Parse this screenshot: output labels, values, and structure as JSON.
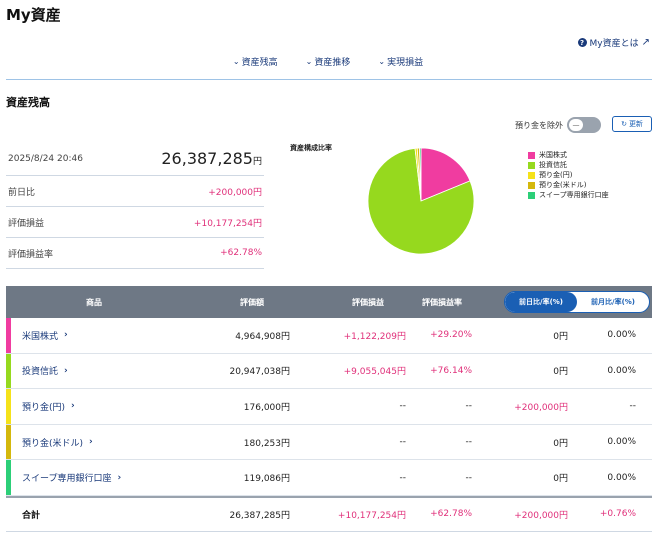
{
  "page_title": "My資産",
  "help_link": "My資産とは",
  "anchor_nav": [
    "資産残高",
    "資産推移",
    "実現損益"
  ],
  "section_title": "資産残高",
  "exclude_label": "預り金を除外",
  "toggle_state": "—",
  "refresh_label": "更新",
  "summary": {
    "datetime": "2025/8/24 20:46",
    "total": "26,387,285",
    "unit": "円",
    "rows": [
      {
        "label": "前日比",
        "value": "+200,000円"
      },
      {
        "label": "評価損益",
        "value": "+10,177,254円"
      },
      {
        "label": "評価損益率",
        "value": "+62.78%"
      }
    ]
  },
  "pie": {
    "title": "資産構成比率",
    "legend": [
      "米国株式",
      "投資信託",
      "預り金(円)",
      "預り金(米ドル)",
      "スイープ専用銀行口座"
    ]
  },
  "chart_data": {
    "type": "pie",
    "title": "資産構成比率",
    "categories": [
      "米国株式",
      "投資信託",
      "預り金(円)",
      "預り金(米ドル)",
      "スイープ専用銀行口座"
    ],
    "values": [
      4964908,
      20947038,
      176000,
      180253,
      119086
    ],
    "colors": [
      "#f03ca0",
      "#96d91e",
      "#f5e21a",
      "#d4b80c",
      "#2ccf78"
    ],
    "legend_position": "right"
  },
  "table": {
    "headers": {
      "product": "商品",
      "valuation": "評価額",
      "pl": "評価損益",
      "pl_rate": "評価損益率",
      "seg_day": "前日比/率(%)",
      "seg_month": "前月比/率(%)"
    },
    "rows": [
      {
        "name": "米国株式",
        "color": "#f03ca0",
        "valuation": "4,964,908円",
        "pl": "+1,122,209円",
        "pl_rate": "+29.20%",
        "diff": "0円",
        "diff_rate": "0.00%"
      },
      {
        "name": "投資信託",
        "color": "#96d91e",
        "valuation": "20,947,038円",
        "pl": "+9,055,045円",
        "pl_rate": "+76.14%",
        "diff": "0円",
        "diff_rate": "0.00%"
      },
      {
        "name": "預り金(円)",
        "color": "#f5e21a",
        "valuation": "176,000円",
        "pl": "--",
        "pl_rate": "--",
        "diff": "+200,000円",
        "diff_rate": "--"
      },
      {
        "name": "預り金(米ドル)",
        "color": "#d4b80c",
        "valuation": "180,253円",
        "pl": "--",
        "pl_rate": "--",
        "diff": "0円",
        "diff_rate": "0.00%"
      },
      {
        "name": "スイープ専用銀行口座",
        "color": "#2ccf78",
        "valuation": "119,086円",
        "pl": "--",
        "pl_rate": "--",
        "diff": "0円",
        "diff_rate": "0.00%"
      }
    ],
    "total": {
      "name": "合計",
      "valuation": "26,387,285円",
      "pl": "+10,177,254円",
      "pl_rate": "+62.78%",
      "diff": "+200,000円",
      "diff_rate": "+0.76%"
    }
  }
}
